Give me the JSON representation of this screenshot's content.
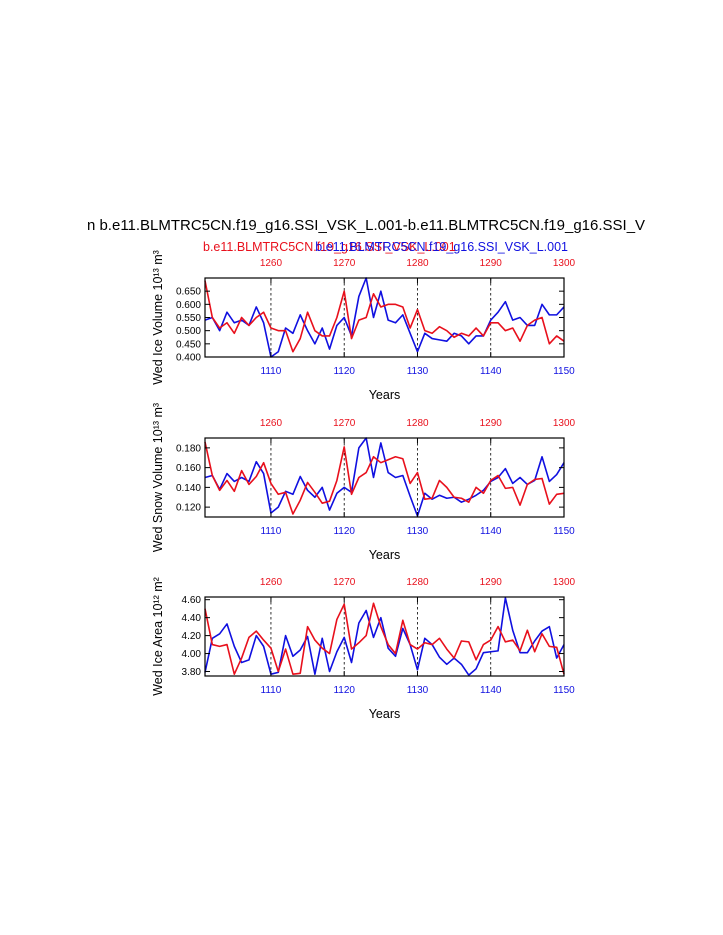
{
  "figure": {
    "title": "n b.e11.BLMTRC5CN.f19_g16.SSI_VSK_L.001-b.e11.BLMTRC5CN.f19_g16.SSI_V",
    "subtitle_red": "b.e11.BLMTRC5CN.f19_g16.SSI_VSK_L.001",
    "subtitle_blue": "b.e11.BLMTRC5CN.f19_g16.SSI_VSK_L.001"
  },
  "colors": {
    "red": "#e8101c",
    "blue": "#1010e0",
    "axis": "#000000"
  },
  "chart_data": [
    {
      "type": "line",
      "ylabel": "Wed Ice Volume 10¹³ m³",
      "xlabel": "Years",
      "ylim": [
        0.4,
        0.7
      ],
      "yticks": [
        0.4,
        0.45,
        0.5,
        0.55,
        0.6,
        0.65
      ],
      "ytick_labels": [
        "0.400",
        "0.450",
        "0.500",
        "0.550",
        "0.600",
        "0.650"
      ],
      "bottom_axis": {
        "range": [
          1101,
          1150
        ],
        "ticks": [
          1110,
          1120,
          1130,
          1140,
          1150
        ]
      },
      "top_axis": {
        "range": [
          1251,
          1300
        ],
        "ticks": [
          1260,
          1270,
          1280,
          1290,
          1300
        ]
      },
      "dashed_vlines": [
        1110,
        1120,
        1130,
        1140
      ],
      "series": [
        {
          "color": "blue",
          "x_axis": "bottom",
          "x_start": 1101,
          "values": [
            0.54,
            0.55,
            0.5,
            0.57,
            0.53,
            0.54,
            0.52,
            0.59,
            0.53,
            0.4,
            0.42,
            0.51,
            0.49,
            0.56,
            0.5,
            0.45,
            0.51,
            0.43,
            0.52,
            0.55,
            0.48,
            0.63,
            0.7,
            0.55,
            0.65,
            0.54,
            0.53,
            0.56,
            0.49,
            0.42,
            0.49,
            0.47,
            0.465,
            0.46,
            0.49,
            0.48,
            0.45,
            0.48,
            0.48,
            0.54,
            0.57,
            0.61,
            0.54,
            0.55,
            0.52,
            0.52,
            0.6,
            0.56,
            0.56,
            0.59
          ]
        },
        {
          "color": "red",
          "x_axis": "top",
          "x_start": 1251,
          "values": [
            0.69,
            0.55,
            0.51,
            0.53,
            0.49,
            0.55,
            0.52,
            0.55,
            0.57,
            0.51,
            0.5,
            0.5,
            0.42,
            0.47,
            0.57,
            0.5,
            0.48,
            0.48,
            0.55,
            0.65,
            0.47,
            0.54,
            0.55,
            0.64,
            0.59,
            0.6,
            0.6,
            0.59,
            0.51,
            0.58,
            0.5,
            0.49,
            0.515,
            0.5,
            0.475,
            0.49,
            0.48,
            0.51,
            0.48,
            0.53,
            0.53,
            0.5,
            0.51,
            0.46,
            0.52,
            0.54,
            0.55,
            0.45,
            0.48,
            0.46
          ]
        }
      ]
    },
    {
      "type": "line",
      "ylabel": "Wed Snow Volume 10¹³ m³",
      "xlabel": "Years",
      "ylim": [
        0.11,
        0.19
      ],
      "yticks": [
        0.12,
        0.14,
        0.16,
        0.18
      ],
      "ytick_labels": [
        "0.120",
        "0.140",
        "0.160",
        "0.180"
      ],
      "bottom_axis": {
        "range": [
          1101,
          1150
        ],
        "ticks": [
          1110,
          1120,
          1130,
          1140,
          1150
        ]
      },
      "top_axis": {
        "range": [
          1251,
          1300
        ],
        "ticks": [
          1260,
          1270,
          1280,
          1290,
          1300
        ]
      },
      "dashed_vlines": [
        1110,
        1120,
        1130,
        1140
      ],
      "series": [
        {
          "color": "blue",
          "x_axis": "bottom",
          "x_start": 1101,
          "values": [
            0.15,
            0.152,
            0.138,
            0.154,
            0.146,
            0.15,
            0.146,
            0.166,
            0.154,
            0.114,
            0.12,
            0.136,
            0.133,
            0.151,
            0.137,
            0.13,
            0.14,
            0.117,
            0.134,
            0.14,
            0.135,
            0.18,
            0.19,
            0.15,
            0.185,
            0.155,
            0.15,
            0.152,
            0.131,
            0.111,
            0.134,
            0.128,
            0.132,
            0.129,
            0.13,
            0.125,
            0.128,
            0.132,
            0.137,
            0.146,
            0.15,
            0.159,
            0.144,
            0.15,
            0.143,
            0.147,
            0.171,
            0.146,
            0.153,
            0.165
          ]
        },
        {
          "color": "red",
          "x_axis": "top",
          "x_start": 1251,
          "values": [
            0.186,
            0.152,
            0.137,
            0.147,
            0.136,
            0.157,
            0.143,
            0.151,
            0.165,
            0.144,
            0.133,
            0.135,
            0.113,
            0.127,
            0.145,
            0.135,
            0.124,
            0.126,
            0.147,
            0.181,
            0.133,
            0.15,
            0.155,
            0.171,
            0.165,
            0.168,
            0.171,
            0.169,
            0.144,
            0.155,
            0.128,
            0.129,
            0.147,
            0.14,
            0.13,
            0.129,
            0.125,
            0.14,
            0.134,
            0.147,
            0.152,
            0.139,
            0.14,
            0.122,
            0.143,
            0.148,
            0.149,
            0.123,
            0.133,
            0.134
          ]
        }
      ]
    },
    {
      "type": "line",
      "ylabel": "Wed Ice Area 10¹² m²",
      "xlabel": "Years",
      "ylim": [
        3.75,
        4.63
      ],
      "yticks": [
        3.8,
        4.0,
        4.2,
        4.4,
        4.6
      ],
      "ytick_labels": [
        "3.80",
        "4.00",
        "4.20",
        "4.40",
        "4.60"
      ],
      "bottom_axis": {
        "range": [
          1101,
          1150
        ],
        "ticks": [
          1110,
          1120,
          1130,
          1140,
          1150
        ]
      },
      "top_axis": {
        "range": [
          1251,
          1300
        ],
        "ticks": [
          1260,
          1270,
          1280,
          1290,
          1300
        ]
      },
      "dashed_vlines": [
        1110,
        1120,
        1130,
        1140
      ],
      "series": [
        {
          "color": "blue",
          "x_axis": "bottom",
          "x_start": 1101,
          "values": [
            3.79,
            4.17,
            4.22,
            4.33,
            4.08,
            3.9,
            3.93,
            4.2,
            4.08,
            3.77,
            3.79,
            4.2,
            3.97,
            4.04,
            4.19,
            3.77,
            4.17,
            3.8,
            4.02,
            4.18,
            3.9,
            4.34,
            4.48,
            4.18,
            4.4,
            4.06,
            3.97,
            4.28,
            4.1,
            3.82,
            4.17,
            4.1,
            3.96,
            3.88,
            3.95,
            3.88,
            3.76,
            3.83,
            4.01,
            4.02,
            4.03,
            4.62,
            4.26,
            4.01,
            4.01,
            4.14,
            4.25,
            4.3,
            3.95,
            4.1
          ]
        },
        {
          "color": "red",
          "x_axis": "top",
          "x_start": 1251,
          "values": [
            4.5,
            4.1,
            4.08,
            4.1,
            3.77,
            3.95,
            4.18,
            4.25,
            4.15,
            4.06,
            3.8,
            4.05,
            3.77,
            3.78,
            4.3,
            4.15,
            4.06,
            4.0,
            4.38,
            4.55,
            4.05,
            4.12,
            4.2,
            4.56,
            4.3,
            4.1,
            4.0,
            4.37,
            4.1,
            4.05,
            4.12,
            4.1,
            4.17,
            4.05,
            3.95,
            4.14,
            4.13,
            3.93,
            4.1,
            4.15,
            4.3,
            4.13,
            4.15,
            4.03,
            4.26,
            4.02,
            4.22,
            4.08,
            4.07,
            3.77
          ]
        }
      ]
    }
  ]
}
